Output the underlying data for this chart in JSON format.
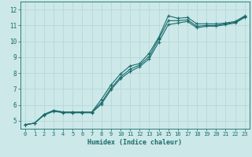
{
  "xlabel": "Humidex (Indice chaleur)",
  "bg_color": "#cce8e8",
  "grid_color": "#d4e8e8",
  "line_color": "#1a6b6b",
  "x_ticks": [
    0,
    1,
    2,
    3,
    4,
    5,
    6,
    7,
    8,
    9,
    10,
    11,
    12,
    13,
    14,
    15,
    16,
    17,
    18,
    19,
    20,
    21,
    22,
    23
  ],
  "y_ticks": [
    5,
    6,
    7,
    8,
    9,
    10,
    11,
    12
  ],
  "xlim": [
    -0.5,
    23.5
  ],
  "ylim": [
    4.5,
    12.5
  ],
  "series": [
    {
      "x": [
        0,
        1,
        2,
        3,
        4,
        5,
        6,
        7,
        8,
        9,
        10,
        11,
        12,
        13,
        14,
        15,
        16,
        17,
        18,
        19,
        20,
        21,
        22,
        23
      ],
      "y": [
        4.75,
        4.85,
        5.4,
        5.65,
        5.55,
        5.55,
        5.55,
        5.55,
        6.35,
        7.25,
        7.95,
        8.45,
        8.6,
        9.25,
        10.25,
        11.6,
        11.45,
        11.5,
        11.1,
        11.1,
        11.1,
        11.15,
        11.25,
        11.6
      ]
    },
    {
      "x": [
        0,
        1,
        2,
        3,
        4,
        5,
        6,
        7,
        8,
        9,
        10,
        11,
        12,
        13,
        14,
        15,
        16,
        17,
        18,
        19,
        20,
        21,
        22,
        23
      ],
      "y": [
        4.75,
        4.85,
        5.4,
        5.65,
        5.55,
        5.55,
        5.55,
        5.55,
        6.15,
        7.05,
        7.75,
        8.25,
        8.5,
        9.05,
        10.15,
        11.3,
        11.3,
        11.35,
        10.95,
        11.0,
        11.0,
        11.1,
        11.2,
        11.55
      ]
    },
    {
      "x": [
        0,
        1,
        2,
        3,
        4,
        5,
        6,
        7,
        8,
        9,
        10,
        11,
        12,
        13,
        14,
        15,
        16,
        17,
        18,
        19,
        20,
        21,
        22,
        23
      ],
      "y": [
        4.75,
        4.85,
        5.35,
        5.6,
        5.5,
        5.5,
        5.5,
        5.5,
        6.05,
        6.95,
        7.65,
        8.1,
        8.4,
        8.9,
        9.95,
        11.05,
        11.15,
        11.25,
        10.85,
        10.95,
        10.95,
        11.05,
        11.15,
        11.5
      ]
    }
  ]
}
